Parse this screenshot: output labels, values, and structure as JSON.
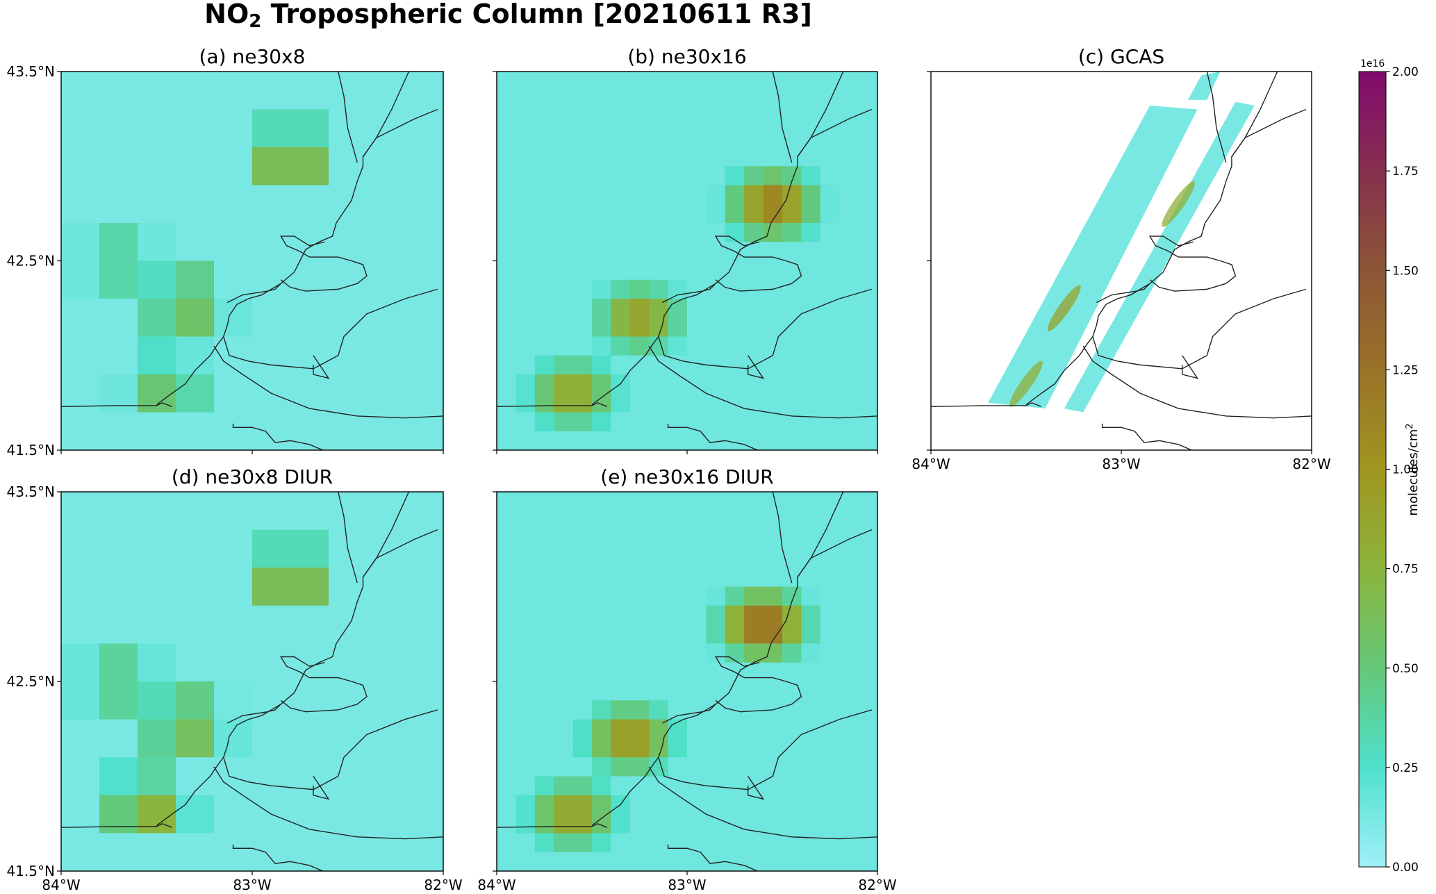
{
  "figure": {
    "title_prefix": "NO",
    "title_subscript": "2",
    "title_suffix": " Tropospheric Column [20210611 R3]"
  },
  "colors": {
    "low": "#a0f0f8",
    "q025": "#4ee0cc",
    "q050": "#64c878",
    "q075": "#8cb43c",
    "q100": "#a09620",
    "q125": "#9a7228",
    "q150": "#8c5636",
    "q175": "#86304e",
    "high": "#820a6e"
  },
  "colorbar": {
    "label": "molecules/cm",
    "label_superscript": "2",
    "scale_text": "1e16",
    "ticks": [
      "0.00",
      "0.25",
      "0.50",
      "0.75",
      "1.00",
      "1.25",
      "1.50",
      "1.75",
      "2.00"
    ],
    "vmin": 0,
    "vmax": 2.0
  },
  "chart_data": [
    {
      "type": "heatmap",
      "title": "(a) ne30x8",
      "xlim": [
        -84,
        -82
      ],
      "ylim": [
        41.5,
        43.5
      ],
      "xticks": [
        "84°W",
        "83°W",
        "82°W"
      ],
      "yticks": [
        "41.5°N",
        "42.5°N",
        "43.5°N"
      ],
      "show_xticklabels": false,
      "show_yticklabels": true,
      "background_level": 0.12,
      "hotspots": [
        {
          "lon": -82.8,
          "lat": 43.05,
          "value": 0.85
        },
        {
          "lon": -83.35,
          "lat": 42.28,
          "value": 0.75
        },
        {
          "lon": -83.45,
          "lat": 41.85,
          "value": 0.6
        },
        {
          "lon": -83.7,
          "lat": 42.5,
          "value": 0.5
        }
      ]
    },
    {
      "type": "heatmap",
      "title": "(b) ne30x16",
      "xlim": [
        -84,
        -82
      ],
      "ylim": [
        41.5,
        43.5
      ],
      "xticks": [
        "84°W",
        "83°W",
        "82°W"
      ],
      "yticks": [
        "41.5°N",
        "42.5°N",
        "43.5°N"
      ],
      "show_xticklabels": false,
      "show_yticklabels": false,
      "background_level": 0.15,
      "hotspots": [
        {
          "lon": -82.55,
          "lat": 42.8,
          "value": 1.2
        },
        {
          "lon": -83.25,
          "lat": 42.2,
          "value": 0.95
        },
        {
          "lon": -83.6,
          "lat": 41.8,
          "value": 0.9
        }
      ]
    },
    {
      "type": "heatmap",
      "title": "(c) GCAS",
      "xlim": [
        -84,
        -82
      ],
      "ylim": [
        41.5,
        43.5
      ],
      "xticks": [
        "84°W",
        "83°W",
        "82°W"
      ],
      "yticks": [
        "41.5°N",
        "42.5°N",
        "43.5°N"
      ],
      "show_xticklabels": true,
      "show_yticklabels": false,
      "background_level": 0.1,
      "hotspots": [
        {
          "lon": -82.7,
          "lat": 42.8,
          "value": 0.8
        },
        {
          "lon": -83.3,
          "lat": 42.25,
          "value": 0.9
        },
        {
          "lon": -83.5,
          "lat": 41.85,
          "value": 0.8
        }
      ]
    },
    {
      "type": "heatmap",
      "title": "(d) ne30x8 DIUR",
      "xlim": [
        -84,
        -82
      ],
      "ylim": [
        41.5,
        43.5
      ],
      "xticks": [
        "84°W",
        "83°W",
        "82°W"
      ],
      "yticks": [
        "41.5°N",
        "42.5°N",
        "43.5°N"
      ],
      "show_xticklabels": true,
      "show_yticklabels": true,
      "background_level": 0.12,
      "hotspots": [
        {
          "lon": -82.8,
          "lat": 43.05,
          "value": 0.85
        },
        {
          "lon": -83.35,
          "lat": 42.28,
          "value": 0.8
        },
        {
          "lon": -83.55,
          "lat": 41.85,
          "value": 0.85
        },
        {
          "lon": -83.7,
          "lat": 42.5,
          "value": 0.55
        }
      ]
    },
    {
      "type": "heatmap",
      "title": "(e) ne30x16 DIUR",
      "xlim": [
        -84,
        -82
      ],
      "ylim": [
        41.5,
        43.5
      ],
      "xticks": [
        "84°W",
        "83°W",
        "82°W"
      ],
      "yticks": [
        "41.5°N",
        "42.5°N",
        "43.5°N"
      ],
      "show_xticklabels": true,
      "show_yticklabels": false,
      "background_level": 0.15,
      "hotspots": [
        {
          "lon": -82.6,
          "lat": 42.8,
          "value": 1.35
        },
        {
          "lon": -83.3,
          "lat": 42.2,
          "value": 1.05
        },
        {
          "lon": -83.6,
          "lat": 41.8,
          "value": 0.95
        }
      ]
    }
  ]
}
